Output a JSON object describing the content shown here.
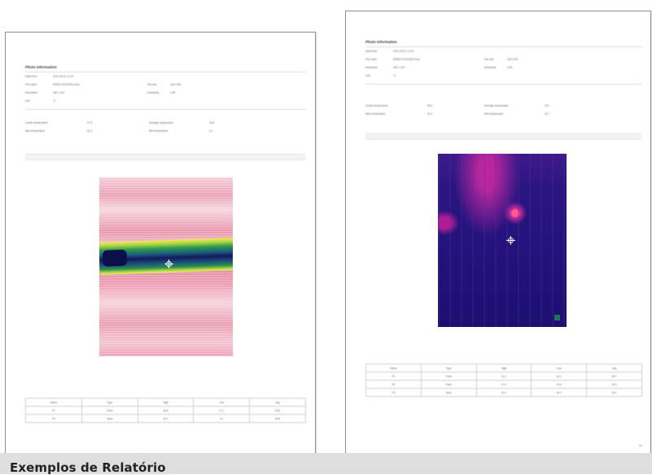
{
  "caption": "Exemplos de Relatório",
  "left_report": {
    "title": "Photo Information",
    "info_rows": [
      [
        {
          "label": "Date/Time",
          "value": "2021-03-01 12:15"
        }
      ],
      [
        {
          "label": "File name",
          "value": "IR0021-20210301.bmp"
        },
        {
          "label": "File size",
          "value": "230.4 KB"
        }
      ],
      [
        {
          "label": "Resolution",
          "value": "160 x 120"
        },
        {
          "label": "Emissivity",
          "value": "0.95"
        }
      ],
      [
        {
          "label": "Unit",
          "value": "°C"
        }
      ]
    ],
    "temp_rows": [
      [
        {
          "label": "Center temperature",
          "value": "27.0"
        },
        {
          "label": "Average temperature",
          "value": "26.8"
        }
      ],
      [
        {
          "label": "Max temperature",
          "value": "32.3"
        },
        {
          "label": "Min temperature",
          "value": "9.1"
        }
      ]
    ],
    "table": {
      "headers": [
        "Name",
        "Type",
        "High",
        "Low",
        "Avg"
      ],
      "rows": [
        [
          "P1",
          "Point",
          "26.8",
          "17.1",
          "26.8"
        ],
        [
          "P2",
          "Area",
          "32.3",
          "9.1",
          "26.8"
        ]
      ]
    }
  },
  "right_report": {
    "title": "Photo Information",
    "info_rows": [
      [
        {
          "label": "Date/Time",
          "value": "2021-03-01 12:20"
        }
      ],
      [
        {
          "label": "File name",
          "value": "IR0022-20210301.bmp"
        },
        {
          "label": "File size",
          "value": "230.4 KB"
        }
      ],
      [
        {
          "label": "Resolution",
          "value": "160 x 120"
        },
        {
          "label": "Emissivity",
          "value": "0.95"
        }
      ],
      [
        {
          "label": "Unit",
          "value": "°C"
        }
      ]
    ],
    "temp_rows": [
      [
        {
          "label": "Center temperature",
          "value": "26.9"
        },
        {
          "label": "Average temperature",
          "value": "25.1"
        }
      ],
      [
        {
          "label": "Max temperature",
          "value": "31.2"
        },
        {
          "label": "Min temperature",
          "value": "20.7"
        }
      ]
    ],
    "table": {
      "headers": [
        "Name",
        "Type",
        "High",
        "Low",
        "Avg"
      ],
      "rows": [
        [
          "P1",
          "Point",
          "31.2",
          "20.1",
          "25.7"
        ],
        [
          "P2",
          "Point",
          "27.0",
          "23.4",
          "25.2"
        ],
        [
          "P3",
          "Area",
          "31.2",
          "20.7",
          "25.1"
        ]
      ]
    },
    "page_number": "1/1"
  }
}
